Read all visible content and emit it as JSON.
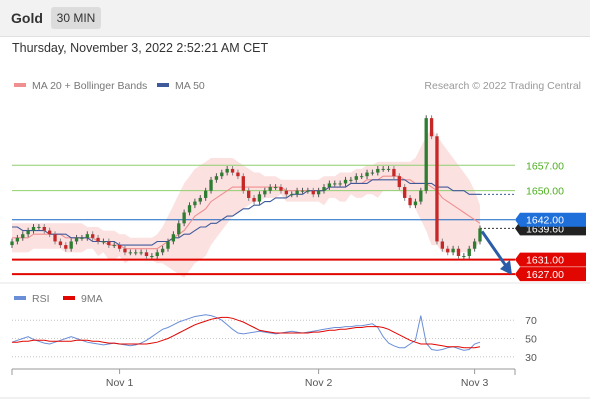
{
  "header": {
    "symbol": "Gold",
    "timeframe": "30 MIN",
    "datetime": "Thursday, November 3, 2022 2:52:21 AM CET"
  },
  "legend": {
    "ma20_label": "MA 20 + Bollinger Bands",
    "ma50_label": "MA 50",
    "credit": "Research © 2022 Trading Central"
  },
  "rsi_legend": {
    "rsi_label": "RSI",
    "ma_label": "9MA"
  },
  "colors": {
    "bullish": "#2e7d32",
    "bearish": "#c62828",
    "ma20": "#ef8f8f",
    "ma50": "#3f5a9a",
    "band_fill": "#fbdcdc",
    "resistance": "#8fcf6f",
    "resistance_text": "#4caf1f",
    "pivot": "#1565c0",
    "support": "#e10600",
    "rsi": "#6a8fd8",
    "rsi_ma": "#e10600",
    "arrow": "#2b5ca8"
  },
  "chart_data": [
    {
      "type": "candlestick",
      "title": "Gold",
      "timeframe": "30 MIN",
      "x_ticks": [
        "Nov 1",
        "Nov 2",
        "Nov 3"
      ],
      "ylim": [
        1624,
        1675
      ],
      "price_levels": [
        {
          "label": "1657.00",
          "value": 1657.0,
          "kind": "resistance"
        },
        {
          "label": "1650.00",
          "value": 1650.0,
          "kind": "resistance"
        },
        {
          "label": "1642.00",
          "value": 1642.0,
          "kind": "pivot"
        },
        {
          "label": "1639.60",
          "value": 1639.6,
          "kind": "last_price"
        },
        {
          "label": "1631.00",
          "value": 1631.0,
          "kind": "support"
        },
        {
          "label": "1627.00",
          "value": 1627.0,
          "kind": "support"
        }
      ],
      "close": [
        1636,
        1637,
        1638,
        1639,
        1640,
        1640,
        1639,
        1638,
        1636,
        1635,
        1634,
        1636,
        1637,
        1637,
        1638,
        1637,
        1636,
        1636,
        1635,
        1635,
        1634,
        1633,
        1633,
        1633,
        1633,
        1632,
        1632,
        1633,
        1634,
        1636,
        1638,
        1641,
        1644,
        1646,
        1647,
        1648,
        1650,
        1653,
        1654,
        1655,
        1656,
        1655,
        1654,
        1650,
        1648,
        1647,
        1649,
        1650,
        1651,
        1651,
        1650,
        1649,
        1649,
        1650,
        1650,
        1650,
        1649,
        1650,
        1651,
        1652,
        1652,
        1652,
        1653,
        1653,
        1654,
        1654,
        1655,
        1655,
        1656,
        1656,
        1656,
        1654,
        1651,
        1648,
        1646,
        1647,
        1650,
        1670,
        1665,
        1636,
        1634,
        1633,
        1634,
        1632,
        1632,
        1634,
        1636,
        1639.6
      ],
      "ma20": [
        1637,
        1637,
        1637,
        1637,
        1638,
        1638,
        1638,
        1638,
        1638,
        1638,
        1637,
        1637,
        1637,
        1637,
        1637,
        1637,
        1636,
        1636,
        1635,
        1635,
        1635,
        1634,
        1634,
        1634,
        1634,
        1634,
        1634,
        1634,
        1635,
        1636,
        1637,
        1638,
        1639,
        1641,
        1643,
        1644,
        1645,
        1647,
        1648,
        1649,
        1650,
        1651,
        1651,
        1651,
        1651,
        1651,
        1651,
        1651,
        1651,
        1651,
        1651,
        1650,
        1650,
        1650,
        1650,
        1650,
        1650,
        1650,
        1650,
        1651,
        1651,
        1651,
        1651,
        1652,
        1652,
        1652,
        1653,
        1653,
        1653,
        1654,
        1654,
        1654,
        1654,
        1653,
        1653,
        1652,
        1652,
        1652,
        1651,
        1650,
        1648,
        1647,
        1646,
        1645,
        1644,
        1643,
        1642,
        1641
      ],
      "bb_upper": [
        1641,
        1641,
        1641,
        1641,
        1641,
        1641,
        1641,
        1641,
        1641,
        1641,
        1641,
        1641,
        1641,
        1641,
        1640,
        1640,
        1640,
        1639,
        1639,
        1639,
        1638,
        1638,
        1637,
        1637,
        1637,
        1637,
        1637,
        1638,
        1640,
        1643,
        1646,
        1649,
        1652,
        1654,
        1656,
        1657,
        1658,
        1659,
        1659,
        1659,
        1659,
        1659,
        1658,
        1657,
        1656,
        1655,
        1655,
        1654,
        1654,
        1654,
        1653,
        1653,
        1653,
        1653,
        1653,
        1653,
        1653,
        1653,
        1654,
        1654,
        1654,
        1655,
        1655,
        1655,
        1656,
        1656,
        1657,
        1657,
        1658,
        1658,
        1658,
        1658,
        1658,
        1658,
        1658,
        1659,
        1662,
        1665,
        1667,
        1665,
        1663,
        1661,
        1659,
        1657,
        1655,
        1653,
        1650,
        1646
      ],
      "bb_lower": [
        1633,
        1633,
        1633,
        1633,
        1634,
        1634,
        1634,
        1634,
        1634,
        1634,
        1633,
        1633,
        1633,
        1633,
        1634,
        1634,
        1632,
        1633,
        1631,
        1631,
        1632,
        1630,
        1631,
        1631,
        1631,
        1631,
        1631,
        1630,
        1630,
        1629,
        1628,
        1627,
        1626,
        1628,
        1630,
        1631,
        1632,
        1635,
        1637,
        1639,
        1641,
        1643,
        1644,
        1645,
        1646,
        1647,
        1647,
        1648,
        1648,
        1648,
        1649,
        1647,
        1647,
        1647,
        1647,
        1647,
        1647,
        1647,
        1646,
        1648,
        1648,
        1647,
        1647,
        1649,
        1648,
        1648,
        1649,
        1649,
        1648,
        1650,
        1650,
        1650,
        1650,
        1648,
        1648,
        1645,
        1642,
        1639,
        1635,
        1635,
        1633,
        1633,
        1633,
        1633,
        1633,
        1633,
        1634,
        1636
      ],
      "ma50": [
        1640,
        1640,
        1639,
        1639,
        1639,
        1639,
        1639,
        1638,
        1638,
        1638,
        1638,
        1637,
        1637,
        1637,
        1637,
        1636,
        1636,
        1636,
        1636,
        1636,
        1635,
        1635,
        1635,
        1635,
        1635,
        1635,
        1635,
        1636,
        1636,
        1636,
        1637,
        1637,
        1638,
        1638,
        1639,
        1640,
        1640,
        1641,
        1641,
        1642,
        1643,
        1643,
        1644,
        1645,
        1645,
        1646,
        1646,
        1647,
        1647,
        1648,
        1648,
        1648,
        1649,
        1649,
        1649,
        1650,
        1650,
        1650,
        1650,
        1651,
        1651,
        1651,
        1651,
        1652,
        1652,
        1652,
        1652,
        1653,
        1653,
        1653,
        1653,
        1653,
        1653,
        1653,
        1652,
        1652,
        1652,
        1652,
        1652,
        1651,
        1651,
        1651,
        1650,
        1650,
        1650,
        1649,
        1649,
        1649
      ]
    },
    {
      "type": "line",
      "series_names": [
        "RSI",
        "9MA"
      ],
      "ylim": [
        20,
        80
      ],
      "y_ticks": [
        "70",
        "50",
        "30"
      ],
      "x_ticks": [
        "Nov 1",
        "Nov 2",
        "Nov 3"
      ],
      "rsi": [
        46,
        48,
        50,
        52,
        49,
        47,
        45,
        44,
        46,
        48,
        50,
        52,
        50,
        48,
        46,
        45,
        44,
        43,
        44,
        45,
        44,
        43,
        42,
        43,
        45,
        48,
        52,
        56,
        60,
        62,
        65,
        68,
        70,
        72,
        74,
        75,
        76,
        75,
        73,
        70,
        65,
        60,
        56,
        55,
        56,
        57,
        58,
        57,
        56,
        55,
        56,
        57,
        58,
        57,
        56,
        57,
        58,
        59,
        60,
        61,
        62,
        62,
        63,
        63,
        64,
        64,
        65,
        66,
        62,
        52,
        45,
        42,
        40,
        40,
        44,
        48,
        75,
        45,
        38,
        37,
        38,
        40,
        41,
        39,
        37,
        38,
        44,
        46
      ],
      "ma9": [
        46,
        46,
        47,
        47,
        48,
        48,
        48,
        47,
        47,
        47,
        47,
        47,
        48,
        48,
        48,
        47,
        47,
        46,
        45,
        45,
        44,
        44,
        44,
        44,
        44,
        44,
        45,
        46,
        48,
        50,
        53,
        56,
        59,
        62,
        65,
        67,
        69,
        71,
        72,
        73,
        73,
        72,
        70,
        68,
        65,
        62,
        59,
        58,
        57,
        56,
        56,
        56,
        56,
        56,
        56,
        56,
        57,
        57,
        58,
        59,
        59,
        60,
        60,
        61,
        62,
        62,
        63,
        63,
        63,
        62,
        60,
        57,
        54,
        51,
        48,
        46,
        44,
        44,
        44,
        43,
        42,
        41,
        41,
        41,
        40,
        40,
        40,
        41
      ]
    }
  ]
}
